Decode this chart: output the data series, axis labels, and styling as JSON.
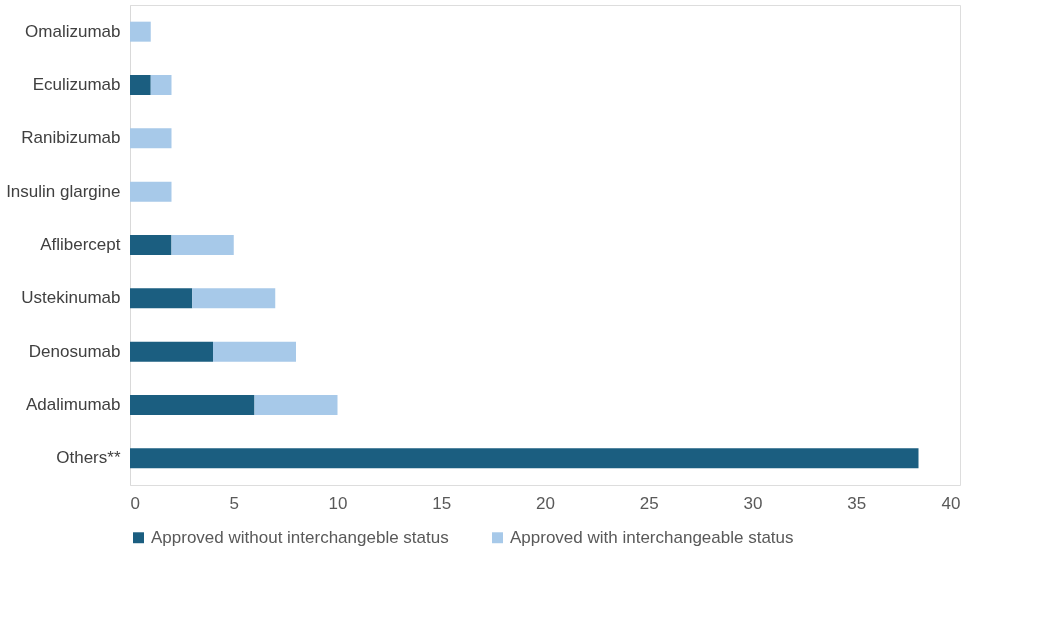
{
  "chart_data": {
    "type": "bar",
    "orientation": "horizontal",
    "stacked": true,
    "categories": [
      "Omalizumab",
      "Eculizumab",
      "Ranibizumab",
      "Insulin glargine",
      "Aflibercept",
      "Ustekinumab",
      "Denosumab",
      "Adalimumab",
      "Others**"
    ],
    "series": [
      {
        "name": "Approved without interchangeble status",
        "color": "#1b5e80",
        "values": [
          0,
          1,
          0,
          0,
          2,
          3,
          4,
          6,
          38
        ]
      },
      {
        "name": "Approved with interchangeable status",
        "color": "#a7c9e9",
        "values": [
          1,
          1,
          2,
          2,
          3,
          4,
          4,
          4,
          0
        ]
      }
    ],
    "xlim": [
      0,
      40
    ],
    "xticks": [
      0,
      5,
      10,
      15,
      20,
      25,
      30,
      35,
      40
    ],
    "grid": false,
    "legend": "bottom"
  }
}
